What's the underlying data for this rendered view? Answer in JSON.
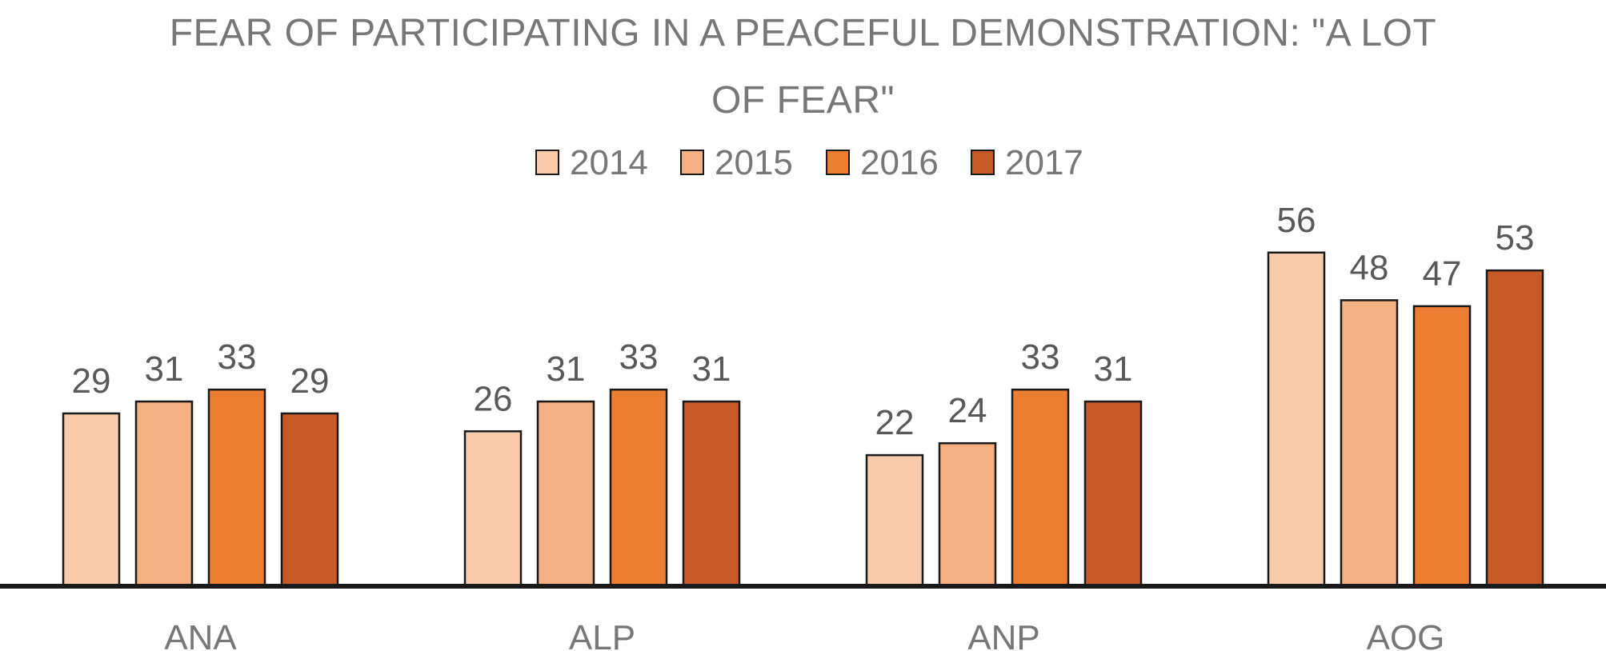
{
  "chart_data": {
    "type": "bar",
    "title_lines": [
      "FEAR OF PARTICIPATING IN A PEACEFUL DEMONSTRATION: \"A LOT",
      "OF FEAR\""
    ],
    "title": "FEAR OF PARTICIPATING IN A PEACEFUL DEMONSTRATION: \"A LOT OF FEAR\"",
    "categories": [
      "ANA",
      "ALP",
      "ANP",
      "AOG"
    ],
    "series": [
      {
        "name": "2014",
        "color": "#F8CBAD",
        "values": [
          29,
          26,
          22,
          56
        ]
      },
      {
        "name": "2015",
        "color": "#F4B183",
        "values": [
          31,
          31,
          24,
          48
        ]
      },
      {
        "name": "2016",
        "color": "#ED7D31",
        "values": [
          33,
          33,
          33,
          47
        ]
      },
      {
        "name": "2017",
        "color": "#C55A28",
        "values": [
          29,
          31,
          31,
          53
        ]
      }
    ],
    "xlabel": "",
    "ylabel": "",
    "ylim": [
      0,
      60
    ],
    "grid": false,
    "legend_position": "top-center",
    "data_labels": true
  }
}
